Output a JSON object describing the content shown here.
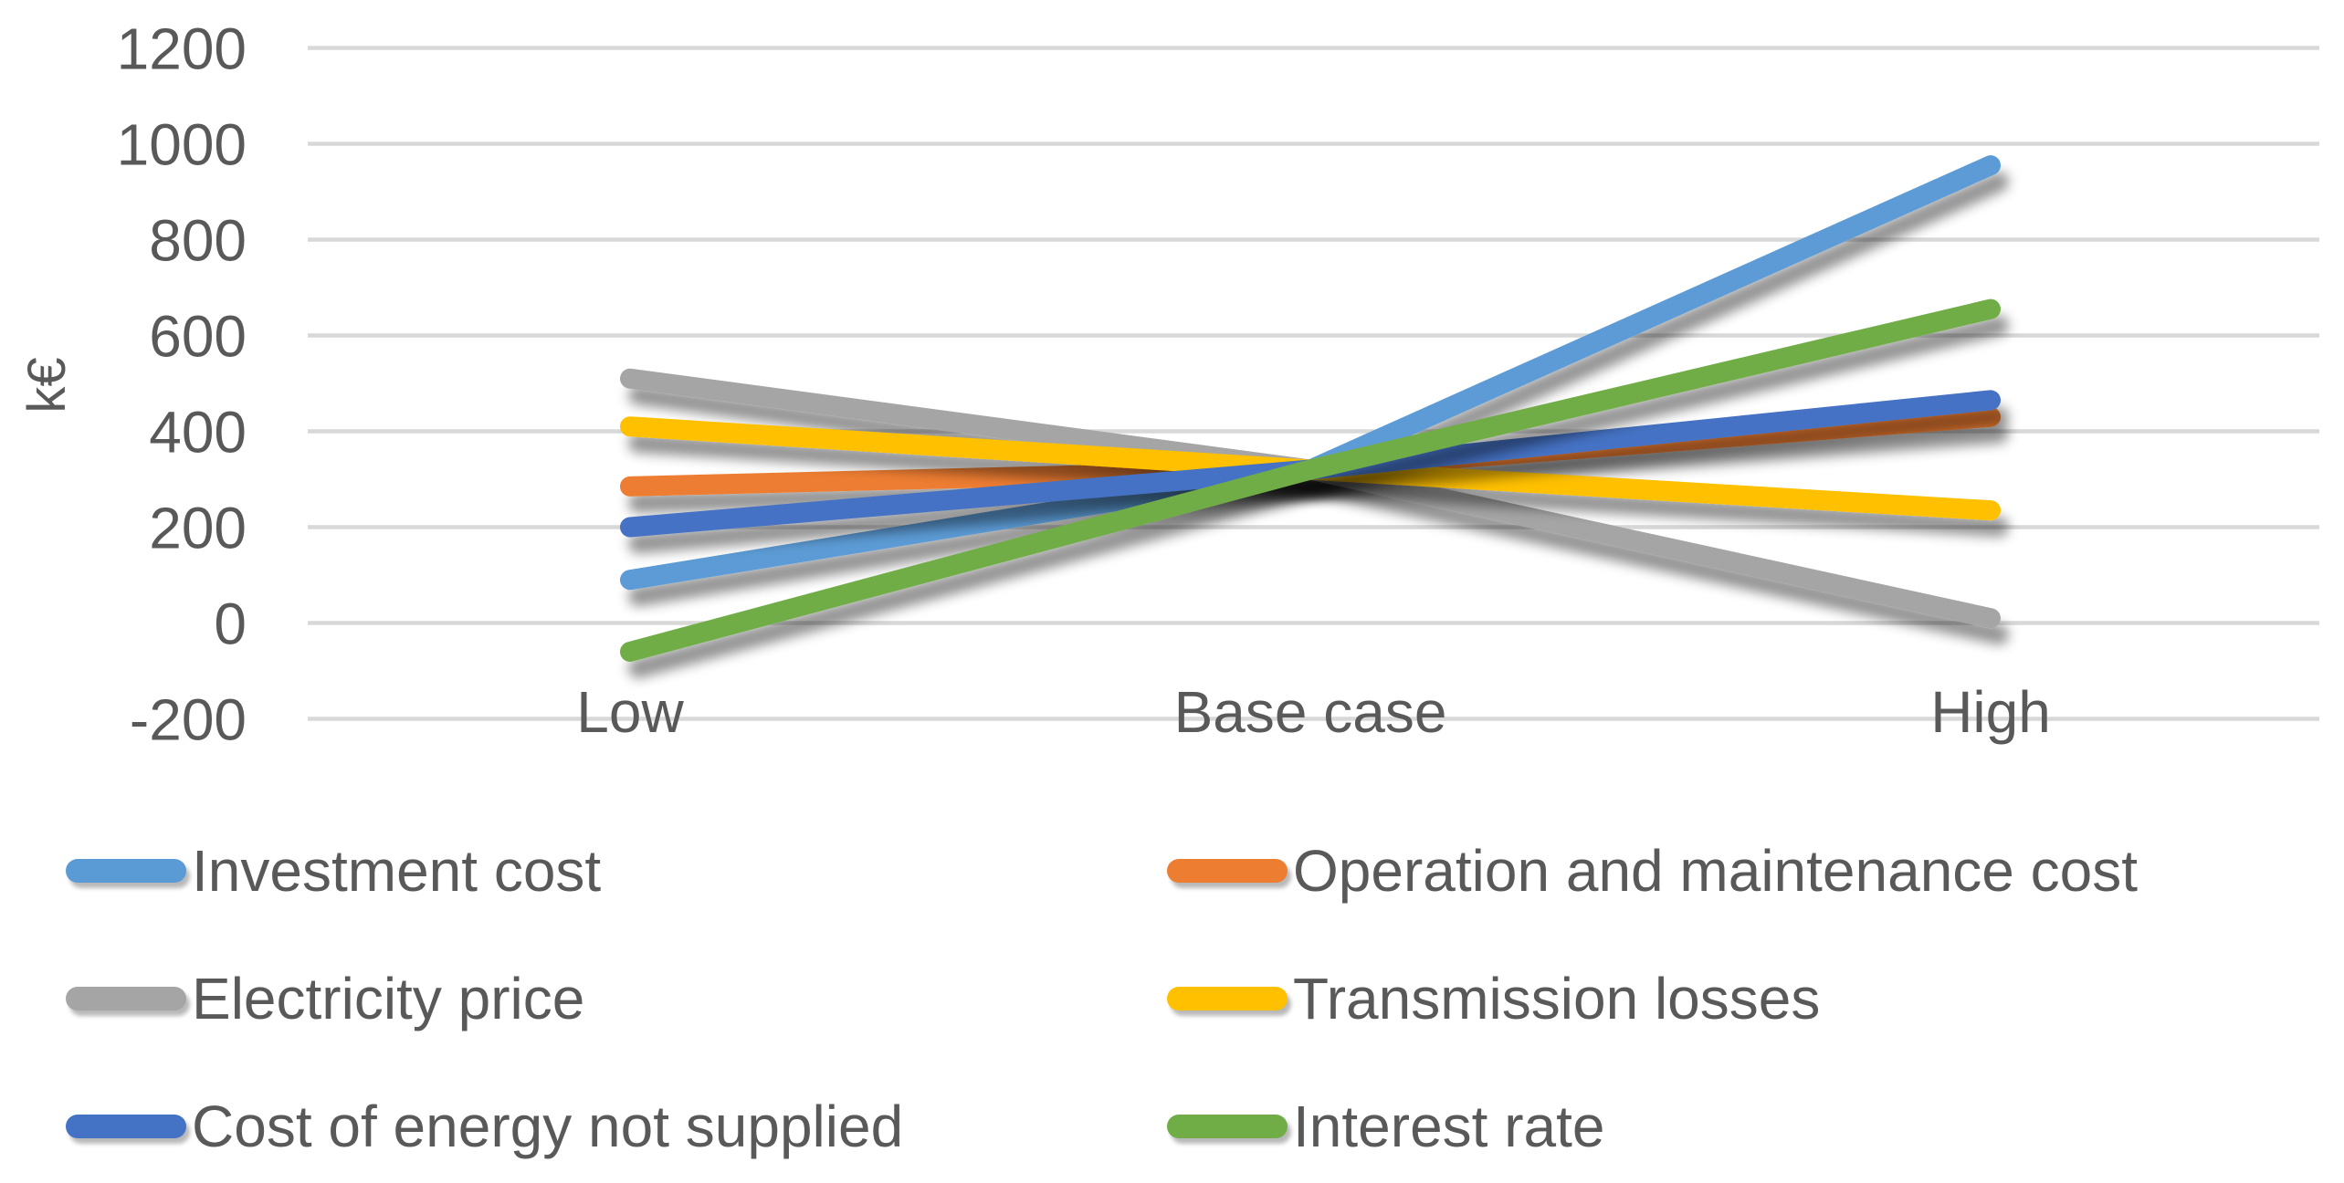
{
  "chart_data": {
    "type": "line",
    "title": "",
    "ylabel": "k€",
    "xlabel": "",
    "categories": [
      "Low",
      "Base case",
      "High"
    ],
    "yticks": [
      1200,
      1000,
      800,
      600,
      400,
      200,
      0,
      -200
    ],
    "ylim": [
      -200,
      1200
    ],
    "grid": true,
    "legend_position": "bottom",
    "series": [
      {
        "name": "Investment cost",
        "color": "#5B9BD5",
        "values": [
          90,
          320,
          955
        ]
      },
      {
        "name": "Operation and maintenance cost",
        "color": "#ED7D31",
        "values": [
          285,
          320,
          430
        ]
      },
      {
        "name": "Electricity price",
        "color": "#A5A5A5",
        "values": [
          510,
          320,
          10
        ]
      },
      {
        "name": "Transmission losses",
        "color": "#FFC000",
        "values": [
          410,
          320,
          235
        ]
      },
      {
        "name": "Cost of energy not supplied",
        "color": "#4472C4",
        "values": [
          200,
          320,
          465
        ]
      },
      {
        "name": "Interest rate",
        "color": "#70AD47",
        "values": [
          -60,
          320,
          655
        ]
      }
    ],
    "style": {
      "gridline_color": "#D8D8D8",
      "axis_text_color": "#595959",
      "background_color": "#FFFFFF"
    }
  }
}
